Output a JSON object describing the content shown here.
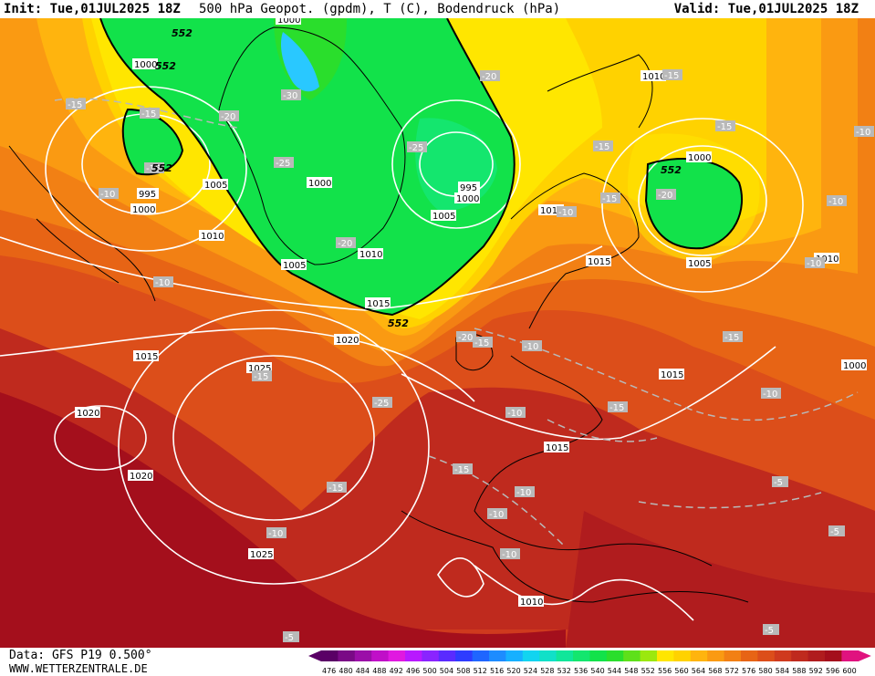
{
  "header": {
    "init": "Init: Tue,01JUL2025 18Z",
    "title": "500 hPa Geopot. (gpdm), T (C), Bodendruck (hPa)",
    "valid": "Valid: Tue,01JUL2025 18Z"
  },
  "footer": {
    "data": "Data: GFS P19 0.500°",
    "site": "WWW.WETTERZENTRALE.DE"
  },
  "colors": {
    "cold_blue": "#29c8ff",
    "green": "#12e24a",
    "yellow": "#ffe600",
    "orange": "#f59d12",
    "dark_orange": "#e76415",
    "red": "#cf3a1e",
    "dark_red": "#a40f1c"
  },
  "scale": {
    "values": [
      "476",
      "480",
      "484",
      "488",
      "492",
      "496",
      "500",
      "504",
      "508",
      "512",
      "516",
      "520",
      "524",
      "528",
      "532",
      "536",
      "540",
      "544",
      "548",
      "552",
      "556",
      "560",
      "564",
      "568",
      "572",
      "576",
      "580",
      "584",
      "588",
      "592",
      "596",
      "600"
    ],
    "colors": [
      "#5a0066",
      "#7a0a86",
      "#9b0fa8",
      "#c00fc8",
      "#e019e0",
      "#b819ff",
      "#8a24ff",
      "#5a2bff",
      "#2e3cff",
      "#1f66ff",
      "#1d8cff",
      "#16b0ff",
      "#12d4f0",
      "#10e0c8",
      "#10e69a",
      "#14e66e",
      "#12e24a",
      "#2ade2c",
      "#5ee01a",
      "#9be80e",
      "#ffe600",
      "#ffd200",
      "#ffb40e",
      "#fa9a12",
      "#f28014",
      "#e76415",
      "#dc4e1a",
      "#cf3a1e",
      "#bf2a1e",
      "#b01c1e",
      "#a40f1c",
      "#e0127f"
    ]
  },
  "pressure_labels": [
    {
      "text": "1000"
    },
    {
      "text": "1000"
    },
    {
      "text": "995"
    },
    {
      "text": "1000"
    },
    {
      "text": "1005"
    },
    {
      "text": "1010"
    },
    {
      "text": "1000"
    },
    {
      "text": "1005"
    },
    {
      "text": "1010"
    },
    {
      "text": "1015"
    },
    {
      "text": "995"
    },
    {
      "text": "1000"
    },
    {
      "text": "1005"
    },
    {
      "text": "1010"
    },
    {
      "text": "1010"
    },
    {
      "text": "1015"
    },
    {
      "text": "1000"
    },
    {
      "text": "1005"
    },
    {
      "text": "1010"
    },
    {
      "text": "1000"
    },
    {
      "text": "1015"
    },
    {
      "text": "1020"
    },
    {
      "text": "1025"
    },
    {
      "text": "1020"
    },
    {
      "text": "1020"
    },
    {
      "text": "1015"
    },
    {
      "text": "1025"
    },
    {
      "text": "1015"
    },
    {
      "text": "1010"
    }
  ],
  "temp_labels": [
    {
      "text": "-15"
    },
    {
      "text": "-15"
    },
    {
      "text": "-10"
    },
    {
      "text": "-20"
    },
    {
      "text": "-30"
    },
    {
      "text": "-25"
    },
    {
      "text": "-20"
    },
    {
      "text": "-25"
    },
    {
      "text": "-20"
    },
    {
      "text": "-15"
    },
    {
      "text": "-15"
    },
    {
      "text": "-15"
    },
    {
      "text": "-20"
    },
    {
      "text": "-10"
    },
    {
      "text": "-15"
    },
    {
      "text": "-10"
    },
    {
      "text": "-10"
    },
    {
      "text": "-15"
    },
    {
      "text": "-20"
    },
    {
      "text": "-15"
    },
    {
      "text": "-10"
    },
    {
      "text": "-25"
    },
    {
      "text": "-15"
    },
    {
      "text": "-10"
    },
    {
      "text": "-10"
    },
    {
      "text": "-15"
    },
    {
      "text": "-10"
    },
    {
      "text": "-10"
    },
    {
      "text": "-15"
    },
    {
      "text": "-10"
    },
    {
      "text": "-10"
    },
    {
      "text": "-10"
    },
    {
      "text": "-5"
    },
    {
      "text": "-5"
    },
    {
      "text": "-5"
    },
    {
      "text": "-5"
    },
    {
      "text": "-10"
    },
    {
      "text": "-15"
    },
    {
      "text": "-15"
    }
  ],
  "geopot_labels": [
    {
      "text": "552"
    },
    {
      "text": "552"
    },
    {
      "text": "552"
    },
    {
      "text": "552"
    },
    {
      "text": "552"
    }
  ]
}
